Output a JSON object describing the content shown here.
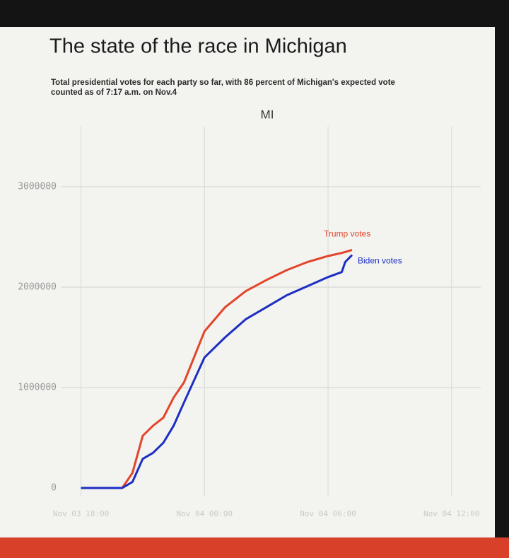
{
  "chart_data": {
    "type": "line",
    "title": "The state of the race in Michigan",
    "subtitle": [
      "Total presidential votes for each party so far, with 86 percent of Michigan's expected vote",
      "counted as of 7:17 a.m. on Nov.4"
    ],
    "panel_title": "MI",
    "x": [
      "Nov 03 18:00",
      "Nov 03 20:00",
      "Nov 03 20:30",
      "Nov 03 21:00",
      "Nov 03 21:30",
      "Nov 03 22:00",
      "Nov 03 22:30",
      "Nov 03 23:00",
      "Nov 04 00:00",
      "Nov 04 01:00",
      "Nov 04 02:00",
      "Nov 04 03:00",
      "Nov 04 04:00",
      "Nov 04 05:00",
      "Nov 04 06:00",
      "Nov 04 06:40",
      "Nov 04 06:50",
      "Nov 04 07:10"
    ],
    "series": [
      {
        "name": "Trump votes",
        "color": "#e2452b",
        "values": [
          0,
          0,
          150000,
          520000,
          620000,
          700000,
          900000,
          1050000,
          1560000,
          1800000,
          1960000,
          2070000,
          2170000,
          2250000,
          2310000,
          2340000,
          2350000,
          2370000
        ]
      },
      {
        "name": "Biden votes",
        "color": "#1c2ec4",
        "values": [
          0,
          0,
          60000,
          290000,
          350000,
          450000,
          620000,
          850000,
          1300000,
          1500000,
          1680000,
          1800000,
          1920000,
          2010000,
          2100000,
          2150000,
          2250000,
          2320000
        ]
      }
    ],
    "xlim": [
      "Nov 03 17:30",
      "Nov 04 13:25"
    ],
    "xticks": [
      "Nov 03 18:00",
      "Nov 04 00:00",
      "Nov 04 06:00",
      "Nov 04 12:00"
    ],
    "ylim": [
      0,
      3600000
    ],
    "yticks": [
      0,
      1000000,
      2000000,
      3000000
    ],
    "grid": true
  }
}
